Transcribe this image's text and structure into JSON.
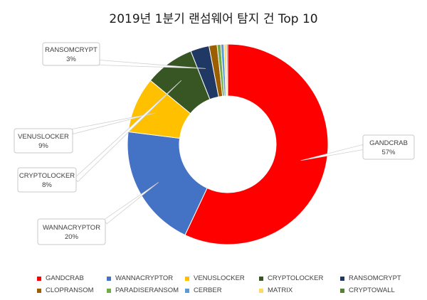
{
  "chart_data": {
    "type": "pie",
    "title": "2019년 1분기 랜섬웨어 탐지 건 Top 10",
    "donut": true,
    "legend_position": "bottom",
    "categories": [
      "GANDCRAB",
      "WANNACRYPTOR",
      "VENUSLOCKER",
      "CRYPTOLOCKER",
      "RANSOMCRYPT",
      "CLOPRANSOM",
      "PARADISERANSOM",
      "CERBER",
      "MATRIX",
      "CRYPTOWALL"
    ],
    "values": [
      57,
      20,
      9,
      8,
      3,
      1.3,
      0.6,
      0.5,
      0.4,
      0.2
    ],
    "colors": [
      "#ff0000",
      "#4472c4",
      "#ffc000",
      "#375623",
      "#1f3864",
      "#9c5f00",
      "#70ad47",
      "#5b9bd5",
      "#ffd966",
      "#548235"
    ],
    "data_labels": [
      {
        "category": "RANSOMCRYPT",
        "name": "RANSOMCRYPT",
        "value": "3%"
      },
      {
        "category": "VENUSLOCKER",
        "name": "VENUSLOCKER",
        "value": "9%"
      },
      {
        "category": "CRYPTOLOCKER",
        "name": "CRYPTOLOCKER",
        "value": "8%"
      },
      {
        "category": "WANNACRYPTOR",
        "name": "WANNACRYPTOR",
        "value": "20%"
      },
      {
        "category": "GANDCRAB",
        "name": "GANDCRAB",
        "value": "57%"
      }
    ]
  }
}
